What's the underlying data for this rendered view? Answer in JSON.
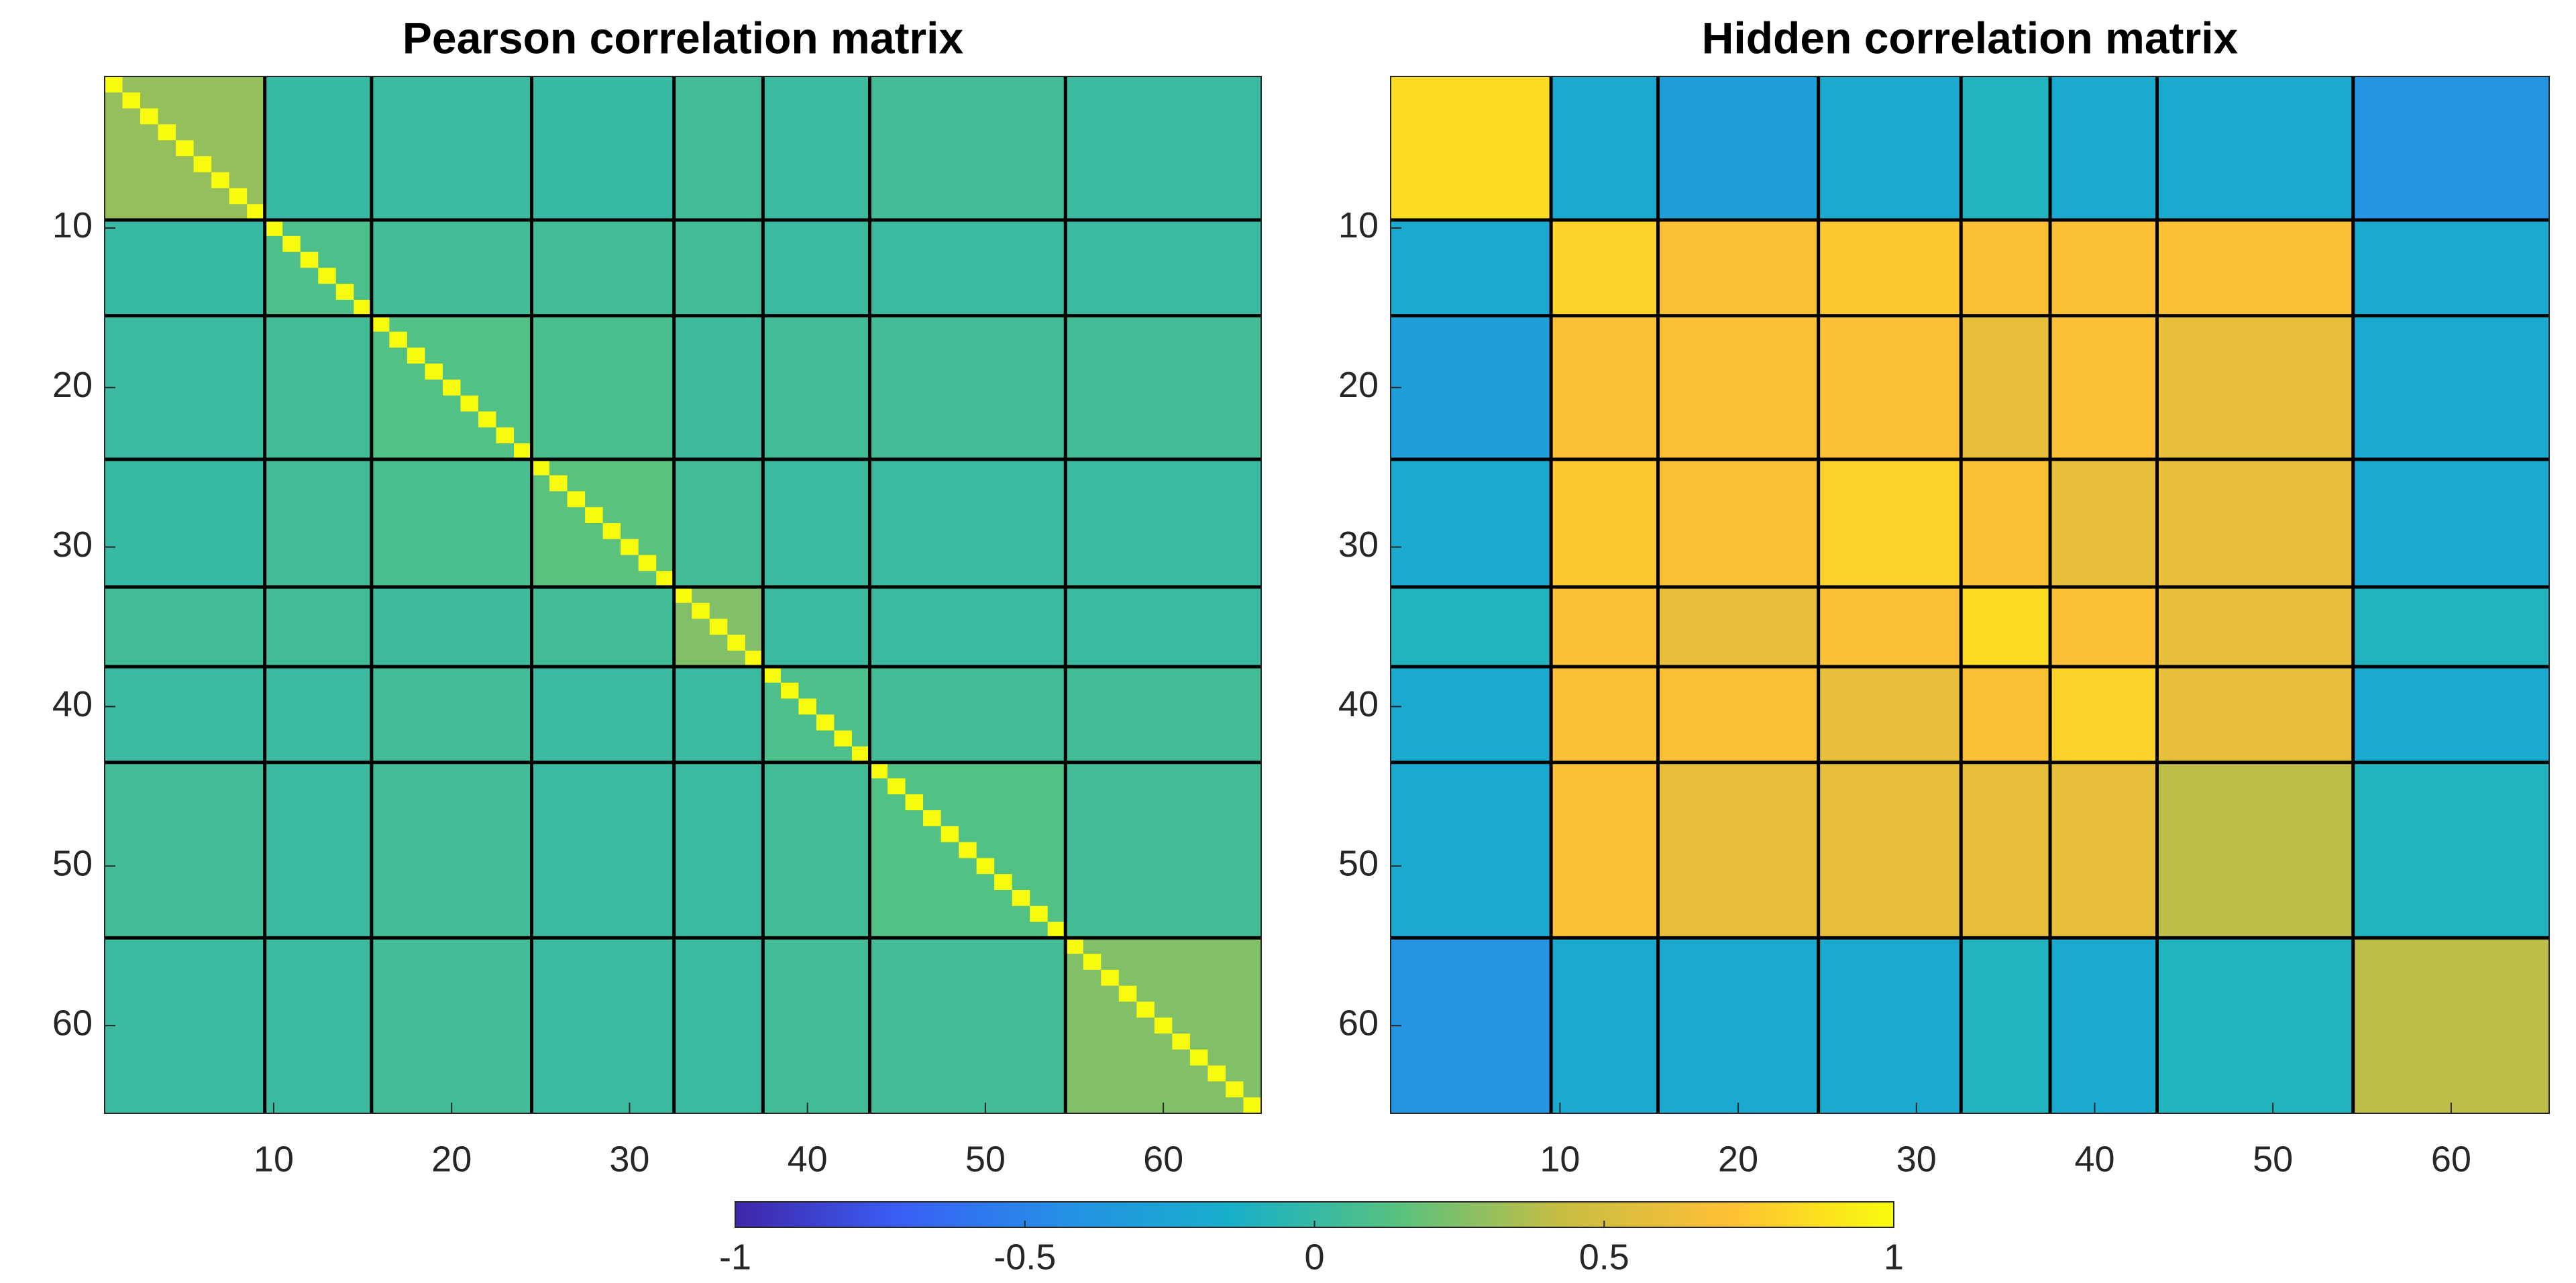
{
  "chart_data": [
    {
      "type": "heatmap",
      "title": "Pearson correlation matrix",
      "xlim": [
        0.5,
        65.5
      ],
      "ylim": [
        0.5,
        65.5
      ],
      "xticks": [
        10,
        20,
        30,
        40,
        50,
        60
      ],
      "yticks": [
        10,
        20,
        30,
        40,
        50,
        60
      ],
      "boundaries": [
        9.5,
        15.5,
        24.5,
        32.5,
        37.5,
        43.5,
        54.5
      ],
      "blocks": [
        [
          0.3,
          0.0,
          0.02,
          0.0,
          0.05,
          0.02,
          0.05,
          0.02
        ],
        [
          0.0,
          0.1,
          0.05,
          0.05,
          0.05,
          0.02,
          0.02,
          0.02
        ],
        [
          0.02,
          0.05,
          0.12,
          0.08,
          0.03,
          0.05,
          0.05,
          0.05
        ],
        [
          0.0,
          0.05,
          0.08,
          0.15,
          0.05,
          0.02,
          0.02,
          0.02
        ],
        [
          0.05,
          0.05,
          0.03,
          0.05,
          0.25,
          0.02,
          0.02,
          0.02
        ],
        [
          0.02,
          0.02,
          0.05,
          0.02,
          0.02,
          0.1,
          0.05,
          0.05
        ],
        [
          0.05,
          0.02,
          0.05,
          0.02,
          0.02,
          0.05,
          0.12,
          0.05
        ],
        [
          0.02,
          0.02,
          0.05,
          0.02,
          0.02,
          0.05,
          0.05,
          0.25
        ]
      ],
      "diagonal": [
        1,
        1,
        1,
        1,
        1,
        1,
        1,
        1,
        1,
        1,
        1,
        1,
        1,
        1,
        1,
        1,
        1,
        1,
        1,
        1,
        1,
        1,
        1,
        1,
        1,
        1,
        1,
        1,
        1,
        1,
        1,
        1,
        1,
        1,
        1,
        1,
        1,
        1,
        1,
        1,
        1,
        1,
        1,
        1,
        1,
        1,
        1,
        1,
        1,
        1,
        1,
        1,
        1,
        1,
        1,
        1,
        1,
        1,
        1,
        1,
        1,
        1,
        1,
        1,
        1
      ]
    },
    {
      "type": "heatmap",
      "title": "Hidden correlation matrix",
      "xlim": [
        0.5,
        65.5
      ],
      "ylim": [
        0.5,
        65.5
      ],
      "xticks": [
        10,
        20,
        30,
        40,
        50,
        60
      ],
      "yticks": [
        10,
        20,
        30,
        40,
        50,
        60
      ],
      "boundaries": [
        9.5,
        15.5,
        24.5,
        32.5,
        37.5,
        43.5,
        54.5
      ],
      "blocks": [
        [
          0.85,
          -0.2,
          -0.3,
          -0.2,
          -0.1,
          -0.2,
          -0.2,
          -0.4
        ],
        [
          -0.2,
          0.8,
          0.7,
          0.75,
          0.7,
          0.7,
          0.7,
          -0.2
        ],
        [
          -0.3,
          0.7,
          0.7,
          0.7,
          0.6,
          0.7,
          0.6,
          -0.2
        ],
        [
          -0.2,
          0.75,
          0.7,
          0.8,
          0.7,
          0.6,
          0.6,
          -0.2
        ],
        [
          -0.1,
          0.7,
          0.6,
          0.7,
          0.85,
          0.7,
          0.6,
          -0.1
        ],
        [
          -0.2,
          0.7,
          0.7,
          0.6,
          0.7,
          0.8,
          0.6,
          -0.2
        ],
        [
          -0.2,
          0.7,
          0.6,
          0.6,
          0.6,
          0.6,
          0.4,
          -0.1
        ],
        [
          -0.4,
          -0.2,
          -0.2,
          -0.2,
          -0.1,
          -0.2,
          -0.1,
          0.4
        ]
      ]
    }
  ],
  "colorbar": {
    "clim": [
      -1,
      1
    ],
    "ticks": [
      -1,
      -0.5,
      0,
      0.5,
      1
    ],
    "colormap": [
      "#3e26a8",
      "#3a5ff6",
      "#2591e6",
      "#17b0c9",
      "#57c27f",
      "#c8bd42",
      "#fec035",
      "#f9fb0e"
    ]
  }
}
